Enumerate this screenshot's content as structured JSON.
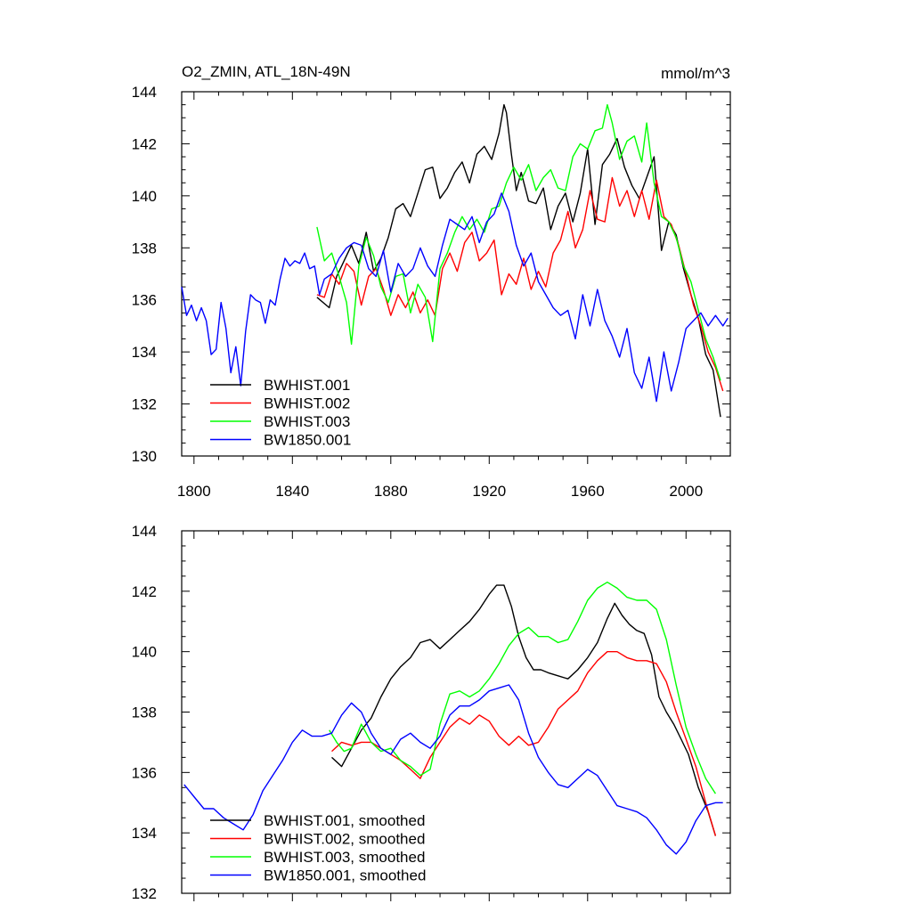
{
  "figure": {
    "title_left": "O2_ZMIN, ATL_18N-49N",
    "title_right": "mmol/m^3"
  },
  "chart_data": [
    {
      "type": "line",
      "title": "O2_ZMIN, ATL_18N-49N",
      "units": "mmol/m^3",
      "xlim": [
        1795,
        2018
      ],
      "ylim": [
        130,
        144
      ],
      "xticks": [
        1800,
        1840,
        1880,
        1920,
        1960,
        2000
      ],
      "yticks": [
        130,
        132,
        134,
        136,
        138,
        140,
        142,
        144
      ],
      "legend_position": "bottom-left",
      "series": [
        {
          "name": "BWHIST.001",
          "color": "#000000",
          "x": [
            1850,
            1855,
            1858,
            1861,
            1864,
            1867,
            1870,
            1873,
            1876,
            1879,
            1882,
            1885,
            1888,
            1891,
            1894,
            1897,
            1900,
            1903,
            1906,
            1909,
            1912,
            1915,
            1918,
            1921,
            1924,
            1926,
            1927,
            1929,
            1931,
            1933,
            1936,
            1939,
            1942,
            1945,
            1948,
            1951,
            1954,
            1957,
            1960,
            1963,
            1966,
            1969,
            1972,
            1975,
            1978,
            1981,
            1984,
            1987,
            1990,
            1993,
            1996,
            1999,
            2002,
            2005,
            2008,
            2011,
            2014
          ],
          "y": [
            136.1,
            135.7,
            136.9,
            137.5,
            138.1,
            137.4,
            138.6,
            137.1,
            137.6,
            138.4,
            139.5,
            139.7,
            139.2,
            140.1,
            141.0,
            141.1,
            139.9,
            140.3,
            140.9,
            141.3,
            140.5,
            141.6,
            141.9,
            141.4,
            142.4,
            143.5,
            143.2,
            141.6,
            140.2,
            140.9,
            139.8,
            139.7,
            140.3,
            138.7,
            139.6,
            140.1,
            139.0,
            140.1,
            141.8,
            138.9,
            141.2,
            141.6,
            142.2,
            141.1,
            140.4,
            139.9,
            140.7,
            141.5,
            137.9,
            139.0,
            138.5,
            137.2,
            136.2,
            135.3,
            133.9,
            133.3,
            131.5
          ]
        },
        {
          "name": "BWHIST.002",
          "color": "#ff0000",
          "x": [
            1850,
            1853,
            1856,
            1859,
            1862,
            1865,
            1868,
            1871,
            1874,
            1877,
            1880,
            1883,
            1886,
            1889,
            1892,
            1895,
            1898,
            1901,
            1904,
            1907,
            1910,
            1913,
            1916,
            1919,
            1922,
            1925,
            1928,
            1931,
            1934,
            1937,
            1940,
            1943,
            1946,
            1949,
            1952,
            1955,
            1958,
            1961,
            1964,
            1967,
            1970,
            1973,
            1976,
            1979,
            1982,
            1985,
            1988,
            1991,
            1994,
            1997,
            2000,
            2003,
            2006,
            2009,
            2012,
            2015
          ],
          "y": [
            136.2,
            136.1,
            137.0,
            136.6,
            137.4,
            137.1,
            135.8,
            136.9,
            137.2,
            136.4,
            135.4,
            136.2,
            135.7,
            136.3,
            135.5,
            136.0,
            135.4,
            137.2,
            137.8,
            137.1,
            138.2,
            138.6,
            137.5,
            137.8,
            138.3,
            136.2,
            137.0,
            136.6,
            137.6,
            136.4,
            137.1,
            136.5,
            137.8,
            138.3,
            139.4,
            138.0,
            138.7,
            140.2,
            139.1,
            139.0,
            140.7,
            139.6,
            140.2,
            139.2,
            140.2,
            139.1,
            140.6,
            139.2,
            138.9,
            138.1,
            137.0,
            135.8,
            135.0,
            134.0,
            133.4,
            132.5
          ]
        },
        {
          "name": "BWHIST.003",
          "color": "#00ff00",
          "x": [
            1850,
            1853,
            1856,
            1859,
            1862,
            1864,
            1867,
            1870,
            1873,
            1876,
            1879,
            1882,
            1885,
            1888,
            1891,
            1894,
            1897,
            1900,
            1903,
            1906,
            1909,
            1912,
            1915,
            1918,
            1921,
            1924,
            1927,
            1930,
            1933,
            1936,
            1939,
            1942,
            1945,
            1948,
            1951,
            1954,
            1957,
            1960,
            1963,
            1966,
            1968,
            1970,
            1973,
            1976,
            1979,
            1982,
            1984,
            1987,
            1990,
            1993,
            1996,
            1999,
            2002,
            2005,
            2008,
            2011,
            2014
          ],
          "y": [
            138.8,
            137.5,
            137.8,
            136.9,
            135.9,
            134.3,
            137.3,
            138.4,
            137.7,
            136.5,
            135.9,
            136.9,
            137.0,
            135.5,
            136.6,
            136.1,
            134.4,
            137.2,
            137.8,
            138.6,
            139.2,
            138.7,
            139.1,
            138.6,
            139.5,
            139.6,
            140.5,
            141.1,
            140.6,
            141.2,
            140.2,
            140.7,
            141.0,
            140.3,
            140.2,
            141.5,
            142.0,
            141.8,
            142.5,
            142.6,
            143.5,
            142.8,
            141.4,
            142.1,
            142.3,
            141.3,
            142.8,
            140.5,
            139.2,
            139.0,
            138.4,
            137.3,
            136.7,
            135.6,
            134.5,
            133.8,
            132.9
          ]
        },
        {
          "name": "BW1850.001",
          "color": "#0000ff",
          "x": [
            1795,
            1797,
            1799,
            1801,
            1803,
            1805,
            1807,
            1809,
            1811,
            1813,
            1815,
            1817,
            1819,
            1821,
            1823,
            1825,
            1827,
            1829,
            1831,
            1833,
            1835,
            1837,
            1839,
            1841,
            1843,
            1845,
            1847,
            1849,
            1851,
            1853,
            1856,
            1859,
            1862,
            1865,
            1868,
            1871,
            1874,
            1877,
            1880,
            1883,
            1886,
            1889,
            1892,
            1895,
            1898,
            1901,
            1904,
            1907,
            1910,
            1913,
            1916,
            1919,
            1922,
            1925,
            1928,
            1931,
            1934,
            1937,
            1940,
            1943,
            1946,
            1949,
            1952,
            1955,
            1958,
            1961,
            1964,
            1967,
            1970,
            1973,
            1976,
            1979,
            1982,
            1985,
            1988,
            1991,
            1994,
            1997,
            2000,
            2003,
            2006,
            2009,
            2012,
            2015,
            2017
          ],
          "y": [
            136.5,
            135.4,
            135.8,
            135.2,
            135.7,
            135.2,
            133.9,
            134.1,
            135.9,
            134.9,
            133.2,
            134.2,
            132.7,
            134.8,
            136.2,
            136.0,
            135.9,
            135.1,
            136.0,
            135.8,
            136.8,
            137.6,
            137.3,
            137.5,
            137.4,
            137.8,
            137.2,
            137.3,
            136.2,
            136.8,
            137.0,
            137.6,
            138.0,
            138.2,
            138.1,
            137.2,
            136.9,
            137.9,
            136.3,
            137.4,
            136.9,
            137.2,
            138.0,
            137.3,
            136.9,
            138.1,
            139.1,
            138.9,
            138.7,
            139.2,
            138.2,
            139.0,
            139.3,
            140.1,
            139.4,
            138.1,
            137.3,
            137.8,
            136.7,
            136.2,
            135.7,
            135.4,
            135.6,
            134.5,
            136.2,
            135.0,
            136.4,
            135.2,
            134.6,
            133.8,
            134.9,
            133.2,
            132.6,
            133.8,
            132.1,
            134.0,
            132.5,
            133.6,
            134.9,
            135.2,
            135.5,
            135.0,
            135.4,
            135.0,
            135.3
          ]
        }
      ]
    },
    {
      "type": "line",
      "title": "",
      "xlim": [
        1795,
        2018
      ],
      "ylim": [
        132,
        144
      ],
      "xticks": [
        1800,
        1840,
        1880,
        1920,
        1960,
        2000
      ],
      "xtick_labels_shown": false,
      "yticks": [
        132,
        134,
        136,
        138,
        140,
        142,
        144
      ],
      "legend_position": "bottom-left",
      "series": [
        {
          "name": "BWHIST.001, smoothed",
          "color": "#000000",
          "x": [
            1856,
            1860,
            1864,
            1868,
            1872,
            1876,
            1880,
            1884,
            1888,
            1892,
            1896,
            1900,
            1904,
            1908,
            1912,
            1916,
            1920,
            1923,
            1926,
            1929,
            1932,
            1935,
            1938,
            1941,
            1944,
            1948,
            1952,
            1956,
            1960,
            1964,
            1968,
            1971,
            1974,
            1977,
            1980,
            1983,
            1986,
            1989,
            1992,
            1995,
            1998,
            2001,
            2005,
            2009,
            2012
          ],
          "y": [
            136.5,
            136.2,
            136.8,
            137.4,
            137.8,
            138.5,
            139.1,
            139.5,
            139.8,
            140.3,
            140.4,
            140.1,
            140.4,
            140.7,
            141.0,
            141.4,
            141.9,
            142.2,
            142.2,
            141.5,
            140.5,
            139.8,
            139.4,
            139.4,
            139.3,
            139.2,
            139.1,
            139.4,
            139.8,
            140.3,
            141.1,
            141.6,
            141.2,
            140.9,
            140.7,
            140.6,
            139.9,
            138.5,
            138.0,
            137.6,
            137.1,
            136.6,
            135.5,
            134.7,
            133.9
          ]
        },
        {
          "name": "BWHIST.002, smoothed",
          "color": "#ff0000",
          "x": [
            1856,
            1860,
            1864,
            1868,
            1872,
            1876,
            1880,
            1884,
            1888,
            1892,
            1896,
            1900,
            1904,
            1908,
            1912,
            1916,
            1920,
            1924,
            1928,
            1932,
            1936,
            1940,
            1944,
            1948,
            1952,
            1956,
            1960,
            1964,
            1968,
            1972,
            1976,
            1980,
            1984,
            1988,
            1992,
            1996,
            2000,
            2004,
            2008,
            2012
          ],
          "y": [
            136.7,
            137.0,
            136.9,
            137.0,
            137.0,
            136.8,
            136.6,
            136.4,
            136.1,
            135.8,
            136.5,
            137.0,
            137.5,
            137.8,
            137.6,
            137.9,
            137.7,
            137.2,
            136.9,
            137.2,
            136.9,
            137.0,
            137.5,
            138.1,
            138.4,
            138.7,
            139.3,
            139.7,
            140.0,
            140.0,
            139.8,
            139.7,
            139.7,
            139.6,
            139.0,
            138.0,
            137.1,
            136.2,
            135.0,
            133.9
          ]
        },
        {
          "name": "BWHIST.003, smoothed",
          "color": "#00ff00",
          "x": [
            1855,
            1858,
            1861,
            1864,
            1868,
            1872,
            1876,
            1880,
            1884,
            1888,
            1892,
            1896,
            1900,
            1904,
            1908,
            1912,
            1916,
            1920,
            1924,
            1928,
            1932,
            1936,
            1940,
            1944,
            1948,
            1952,
            1956,
            1960,
            1964,
            1968,
            1972,
            1976,
            1980,
            1984,
            1988,
            1992,
            1996,
            2000,
            2004,
            2008,
            2012
          ],
          "y": [
            137.4,
            137.0,
            136.7,
            136.8,
            137.6,
            137.0,
            136.7,
            136.8,
            136.4,
            136.2,
            135.9,
            136.1,
            137.6,
            138.6,
            138.7,
            138.5,
            138.7,
            139.1,
            139.6,
            140.2,
            140.6,
            140.8,
            140.5,
            140.5,
            140.3,
            140.4,
            141.0,
            141.7,
            142.1,
            142.3,
            142.1,
            141.8,
            141.7,
            141.7,
            141.4,
            140.4,
            138.9,
            137.5,
            136.6,
            135.8,
            135.3
          ]
        },
        {
          "name": "BW1850.001, smoothed",
          "color": "#0000ff",
          "x": [
            1796,
            1800,
            1804,
            1808,
            1812,
            1816,
            1820,
            1824,
            1828,
            1832,
            1836,
            1840,
            1844,
            1848,
            1852,
            1856,
            1860,
            1864,
            1868,
            1872,
            1876,
            1880,
            1884,
            1888,
            1892,
            1896,
            1900,
            1904,
            1908,
            1912,
            1916,
            1920,
            1924,
            1928,
            1932,
            1936,
            1940,
            1944,
            1948,
            1952,
            1956,
            1960,
            1964,
            1968,
            1972,
            1976,
            1980,
            1984,
            1988,
            1992,
            1996,
            2000,
            2004,
            2008,
            2012,
            2015
          ],
          "y": [
            135.6,
            135.2,
            134.8,
            134.8,
            134.5,
            134.3,
            134.1,
            134.6,
            135.4,
            135.9,
            136.4,
            137.0,
            137.4,
            137.2,
            137.2,
            137.3,
            137.9,
            138.3,
            138.0,
            137.3,
            136.8,
            136.6,
            137.1,
            137.3,
            137.0,
            136.8,
            137.2,
            137.9,
            138.2,
            138.2,
            138.4,
            138.7,
            138.8,
            138.9,
            138.4,
            137.3,
            136.5,
            136.0,
            135.6,
            135.5,
            135.8,
            136.1,
            135.9,
            135.4,
            134.9,
            134.8,
            134.7,
            134.5,
            134.1,
            133.6,
            133.3,
            133.7,
            134.4,
            134.9,
            135.0,
            135.0
          ]
        }
      ]
    }
  ]
}
